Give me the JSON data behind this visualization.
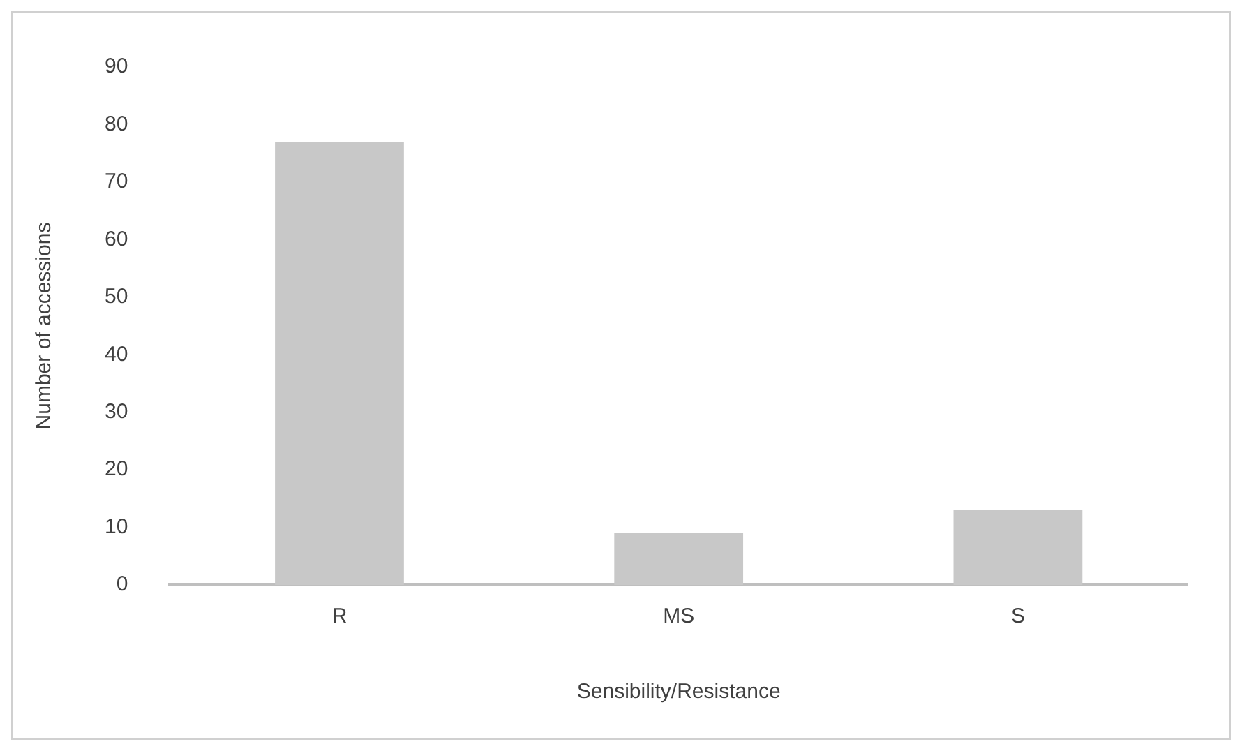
{
  "chart_data": {
    "type": "bar",
    "xlabel": "Sensibility/Resistance",
    "ylabel": "Number of accessions",
    "categories": [
      "R",
      "MS",
      "S"
    ],
    "values": [
      77,
      9,
      13
    ],
    "color": "#c8c8c8",
    "ylim": [
      0,
      90
    ],
    "yticks": [
      0,
      10,
      20,
      30,
      40,
      50,
      60,
      70,
      80,
      90
    ],
    "grid": false,
    "legend": false
  }
}
